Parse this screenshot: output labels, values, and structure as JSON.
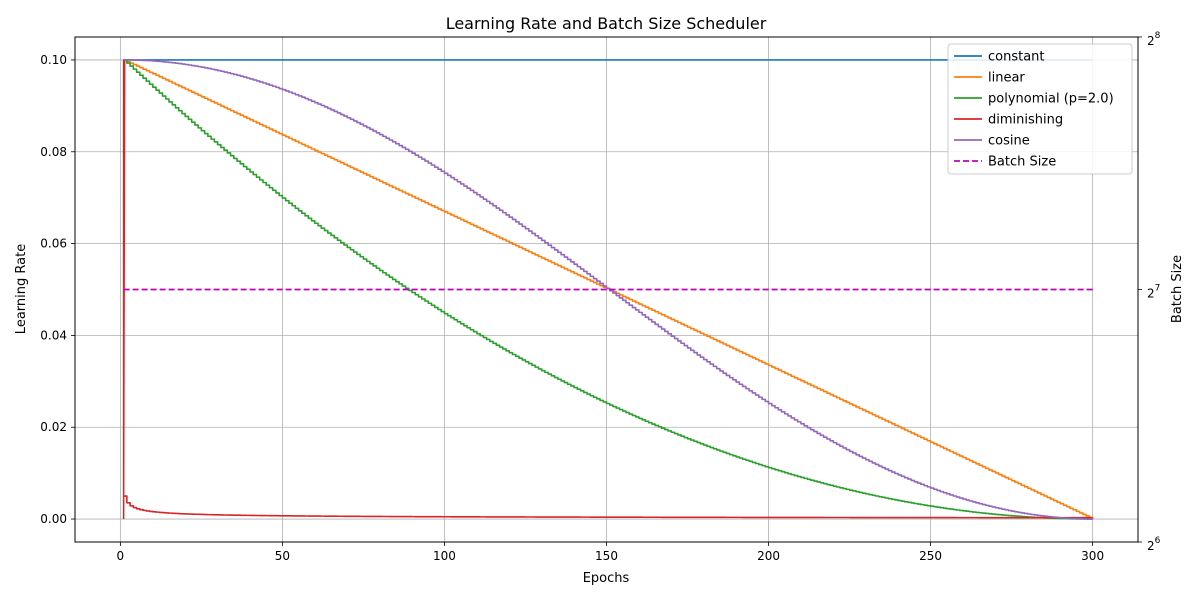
{
  "chart_data": {
    "type": "line",
    "title": "Learning Rate and Batch Size Scheduler",
    "xlabel": "Epochs",
    "ylabel": "Learning Rate",
    "y2label": "Batch Size",
    "xlim": [
      -14,
      314
    ],
    "ylim": [
      -0.005,
      0.105
    ],
    "y2lim_log2": [
      6,
      8
    ],
    "x_ticks": [
      "0",
      "50",
      "100",
      "150",
      "200",
      "250",
      "300"
    ],
    "y_ticks": [
      "0.00",
      "0.02",
      "0.04",
      "0.06",
      "0.08",
      "0.10"
    ],
    "y2_ticks": [
      {
        "base": "2",
        "exp": "6"
      },
      {
        "base": "2",
        "exp": "7"
      },
      {
        "base": "2",
        "exp": "8"
      }
    ],
    "grid": true,
    "legend_position": "top-right",
    "epochs": [
      1,
      300
    ],
    "initial_lr": 0.1,
    "series": [
      {
        "name": "constant",
        "color": "#1f77b4",
        "schedule": "constant"
      },
      {
        "name": "linear",
        "color": "#ff7f0e",
        "schedule": "linear"
      },
      {
        "name": "polynomial (p=2.0)",
        "color": "#2ca02c",
        "schedule": "polynomial",
        "power": 2.0
      },
      {
        "name": "diminishing",
        "color": "#d62728",
        "schedule": "diminishing"
      },
      {
        "name": "cosine",
        "color": "#9467bd",
        "schedule": "cosine"
      }
    ],
    "batch_size": {
      "name": "Batch Size",
      "color": "#bf00bf",
      "value": 128
    }
  }
}
